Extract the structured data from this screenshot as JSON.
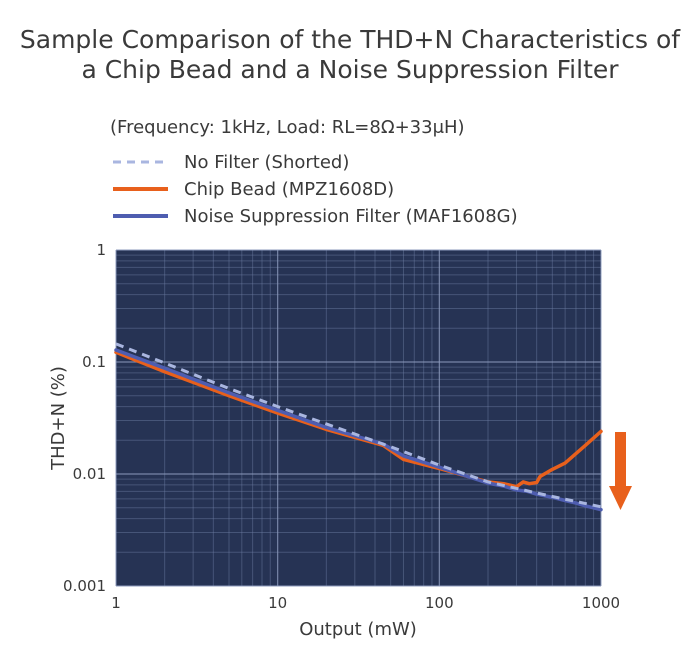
{
  "chart_data": {
    "type": "line",
    "title_lines": [
      "Sample Comparison of the THD+N Characteristics of",
      "a Chip Bead and a Noise Suppression Filter"
    ],
    "subtitle": "(Frequency: 1kHz, Load: RL=8Ω+33μH)",
    "xlabel": "Output (mW)",
    "ylabel": "THD+N  (%)",
    "x_scale": "log",
    "y_scale": "log",
    "xlim": [
      1,
      1000
    ],
    "ylim": [
      0.001,
      1
    ],
    "x_ticks": [
      {
        "value": 1,
        "label": "1"
      },
      {
        "value": 10,
        "label": "10"
      },
      {
        "value": 100,
        "label": "100"
      },
      {
        "value": 1000,
        "label": "1000"
      }
    ],
    "y_ticks": [
      {
        "value": 1,
        "label": "1"
      },
      {
        "value": 0.1,
        "label": "0.1"
      },
      {
        "value": 0.01,
        "label": "0.01"
      },
      {
        "value": 0.001,
        "label": "0.001"
      }
    ],
    "grid": true,
    "legend_position": "top-left",
    "plot_background": "#263354",
    "series": [
      {
        "name": "No Filter (Shorted)",
        "color": "#a9b6e0",
        "style": "dashed",
        "points": [
          [
            1,
            0.145
          ],
          [
            2,
            0.098
          ],
          [
            5,
            0.058
          ],
          [
            10,
            0.04
          ],
          [
            20,
            0.028
          ],
          [
            50,
            0.0175
          ],
          [
            100,
            0.012
          ],
          [
            200,
            0.0085
          ],
          [
            500,
            0.0063
          ],
          [
            1000,
            0.0051
          ]
        ]
      },
      {
        "name": "Chip Bead (MPZ1608D)",
        "color": "#e8601c",
        "style": "solid",
        "points": [
          [
            1,
            0.122
          ],
          [
            2,
            0.082
          ],
          [
            5,
            0.05
          ],
          [
            10,
            0.035
          ],
          [
            20,
            0.025
          ],
          [
            45,
            0.018
          ],
          [
            60,
            0.0135
          ],
          [
            100,
            0.0112
          ],
          [
            150,
            0.0095
          ],
          [
            200,
            0.0085
          ],
          [
            250,
            0.0082
          ],
          [
            300,
            0.0077
          ],
          [
            330,
            0.0085
          ],
          [
            360,
            0.0082
          ],
          [
            400,
            0.0084
          ],
          [
            420,
            0.0095
          ],
          [
            500,
            0.011
          ],
          [
            600,
            0.0125
          ],
          [
            800,
            0.018
          ],
          [
            1000,
            0.024
          ]
        ]
      },
      {
        "name": "Noise Suppression Filter (MAF1608G)",
        "color": "#4e5db0",
        "style": "solid",
        "points": [
          [
            1,
            0.128
          ],
          [
            2,
            0.088
          ],
          [
            5,
            0.053
          ],
          [
            10,
            0.037
          ],
          [
            20,
            0.026
          ],
          [
            45,
            0.0185
          ],
          [
            60,
            0.0145
          ],
          [
            100,
            0.0115
          ],
          [
            150,
            0.0095
          ],
          [
            200,
            0.0083
          ],
          [
            250,
            0.0078
          ],
          [
            300,
            0.0072
          ],
          [
            350,
            0.007
          ],
          [
            400,
            0.0066
          ],
          [
            500,
            0.0062
          ],
          [
            600,
            0.0058
          ],
          [
            700,
            0.0055
          ],
          [
            800,
            0.0052
          ],
          [
            1000,
            0.0048
          ]
        ]
      }
    ],
    "arrow_color": "#e8601c"
  }
}
